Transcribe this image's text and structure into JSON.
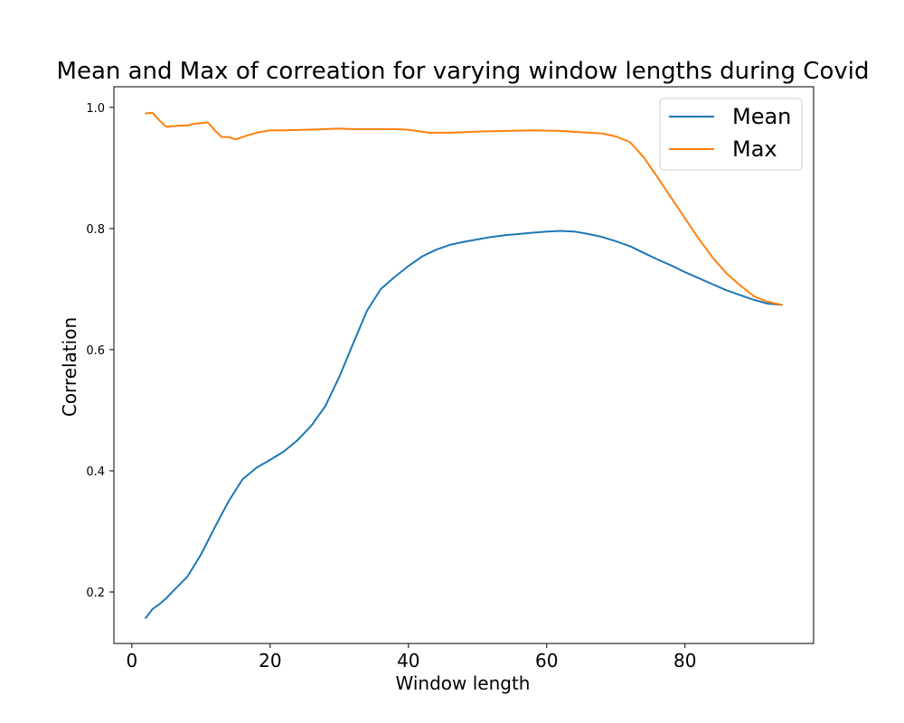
{
  "chart_data": {
    "type": "line",
    "title": "Mean and Max of correation for varying window lengths during Covid",
    "xlabel": "Window length",
    "ylabel": "Correlation",
    "xlim": [
      -2.6,
      98.6
    ],
    "ylim": [
      0.115,
      1.034
    ],
    "xticks": [
      0,
      20,
      40,
      60,
      80
    ],
    "yticks": [
      0.2,
      0.4,
      0.6,
      0.8,
      1.0
    ],
    "grid": false,
    "legend_position": "top-right",
    "series": [
      {
        "name": "Mean",
        "color": "#1f77b4",
        "x": [
          2,
          3,
          4,
          5,
          6,
          8,
          10,
          12,
          14,
          16,
          18,
          20,
          22,
          24,
          26,
          28,
          30,
          32,
          34,
          36,
          38,
          40,
          42,
          44,
          46,
          48,
          50,
          52,
          54,
          56,
          58,
          60,
          62,
          64,
          66,
          68,
          70,
          72,
          74,
          76,
          78,
          80,
          82,
          84,
          86,
          88,
          90,
          92,
          94
        ],
        "y": [
          0.157,
          0.172,
          0.18,
          0.19,
          0.202,
          0.225,
          0.262,
          0.307,
          0.35,
          0.386,
          0.405,
          0.418,
          0.432,
          0.451,
          0.475,
          0.507,
          0.555,
          0.61,
          0.664,
          0.7,
          0.72,
          0.738,
          0.754,
          0.765,
          0.773,
          0.778,
          0.782,
          0.786,
          0.789,
          0.791,
          0.793,
          0.795,
          0.796,
          0.795,
          0.791,
          0.786,
          0.779,
          0.771,
          0.76,
          0.749,
          0.739,
          0.728,
          0.718,
          0.708,
          0.698,
          0.69,
          0.682,
          0.676,
          0.674
        ]
      },
      {
        "name": "Max",
        "color": "#ff7f0e",
        "x": [
          2,
          3,
          4,
          5,
          6,
          7,
          8,
          9,
          10,
          11,
          12,
          13,
          14,
          15,
          16,
          18,
          20,
          22,
          25,
          28,
          30,
          32,
          35,
          38,
          40,
          43,
          46,
          50,
          54,
          58,
          62,
          66,
          68,
          70,
          72,
          74,
          76,
          78,
          80,
          82,
          84,
          86,
          88,
          90,
          92,
          94
        ],
        "y": [
          0.99,
          0.991,
          0.978,
          0.968,
          0.969,
          0.97,
          0.97,
          0.973,
          0.974,
          0.975,
          0.962,
          0.951,
          0.951,
          0.947,
          0.951,
          0.958,
          0.962,
          0.962,
          0.963,
          0.964,
          0.965,
          0.964,
          0.964,
          0.964,
          0.963,
          0.958,
          0.958,
          0.96,
          0.961,
          0.962,
          0.961,
          0.958,
          0.957,
          0.952,
          0.943,
          0.918,
          0.885,
          0.851,
          0.817,
          0.783,
          0.752,
          0.726,
          0.706,
          0.688,
          0.679,
          0.674
        ]
      }
    ]
  }
}
